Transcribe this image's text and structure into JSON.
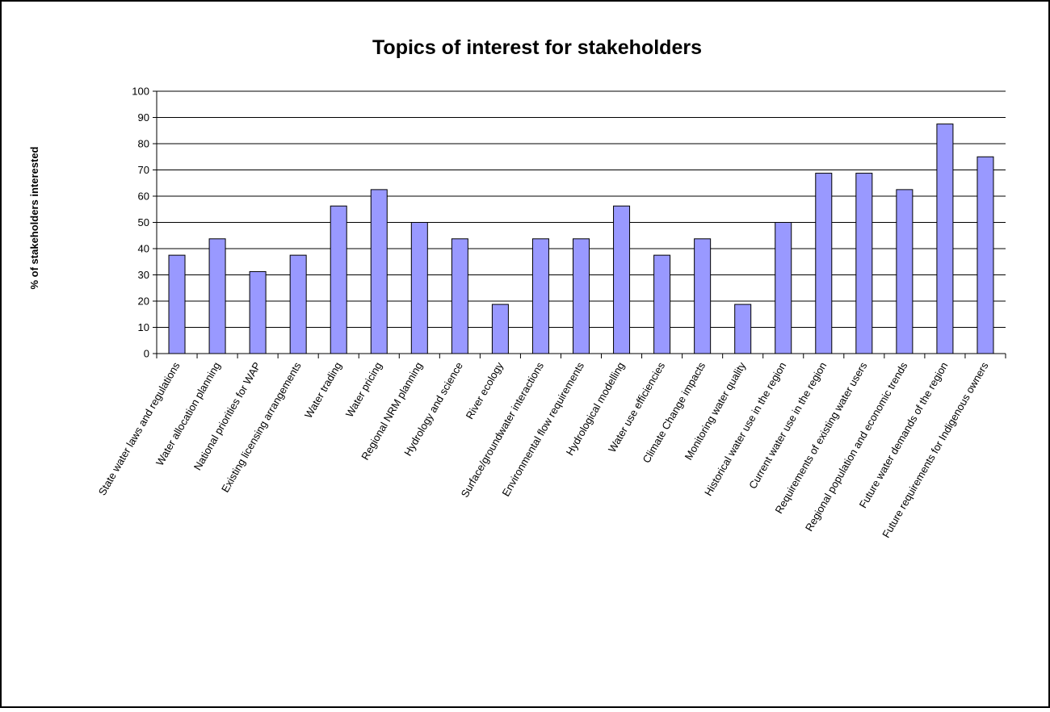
{
  "chart_data": {
    "type": "bar",
    "title": "Topics of interest for stakeholders",
    "xlabel": "",
    "ylabel": "% of stakeholders interested",
    "ylim": [
      0,
      100
    ],
    "yticks": [
      0,
      10,
      20,
      30,
      40,
      50,
      60,
      70,
      80,
      90,
      100
    ],
    "grid": true,
    "legend": "none",
    "bar_color": "#9999ff",
    "categories": [
      "State water laws and regulations",
      "Water allocation planning",
      "National priorities for WAP",
      "Existing licensing arrangements",
      "Water trading",
      "Water pricing",
      "Regional NRM planning",
      "Hydrology and science",
      "River ecology",
      "Surface/groundwater interactions",
      "Environmental flow requirements",
      "Hydrological modelling",
      "Water use efficiencies",
      "Climate Change impacts",
      "Monitoring water quality",
      "Historical water use in the region",
      "Current water use in the region",
      "Requirements of existing water users",
      "Regional population and economic trends",
      "Future water demands of the region",
      "Future requirements for Indigenous owners"
    ],
    "values": [
      37.5,
      43.75,
      31.25,
      37.5,
      56.25,
      62.5,
      50,
      43.75,
      18.75,
      43.75,
      43.75,
      56.25,
      37.5,
      43.75,
      18.75,
      50,
      68.75,
      68.75,
      62.5,
      87.5,
      75
    ]
  }
}
